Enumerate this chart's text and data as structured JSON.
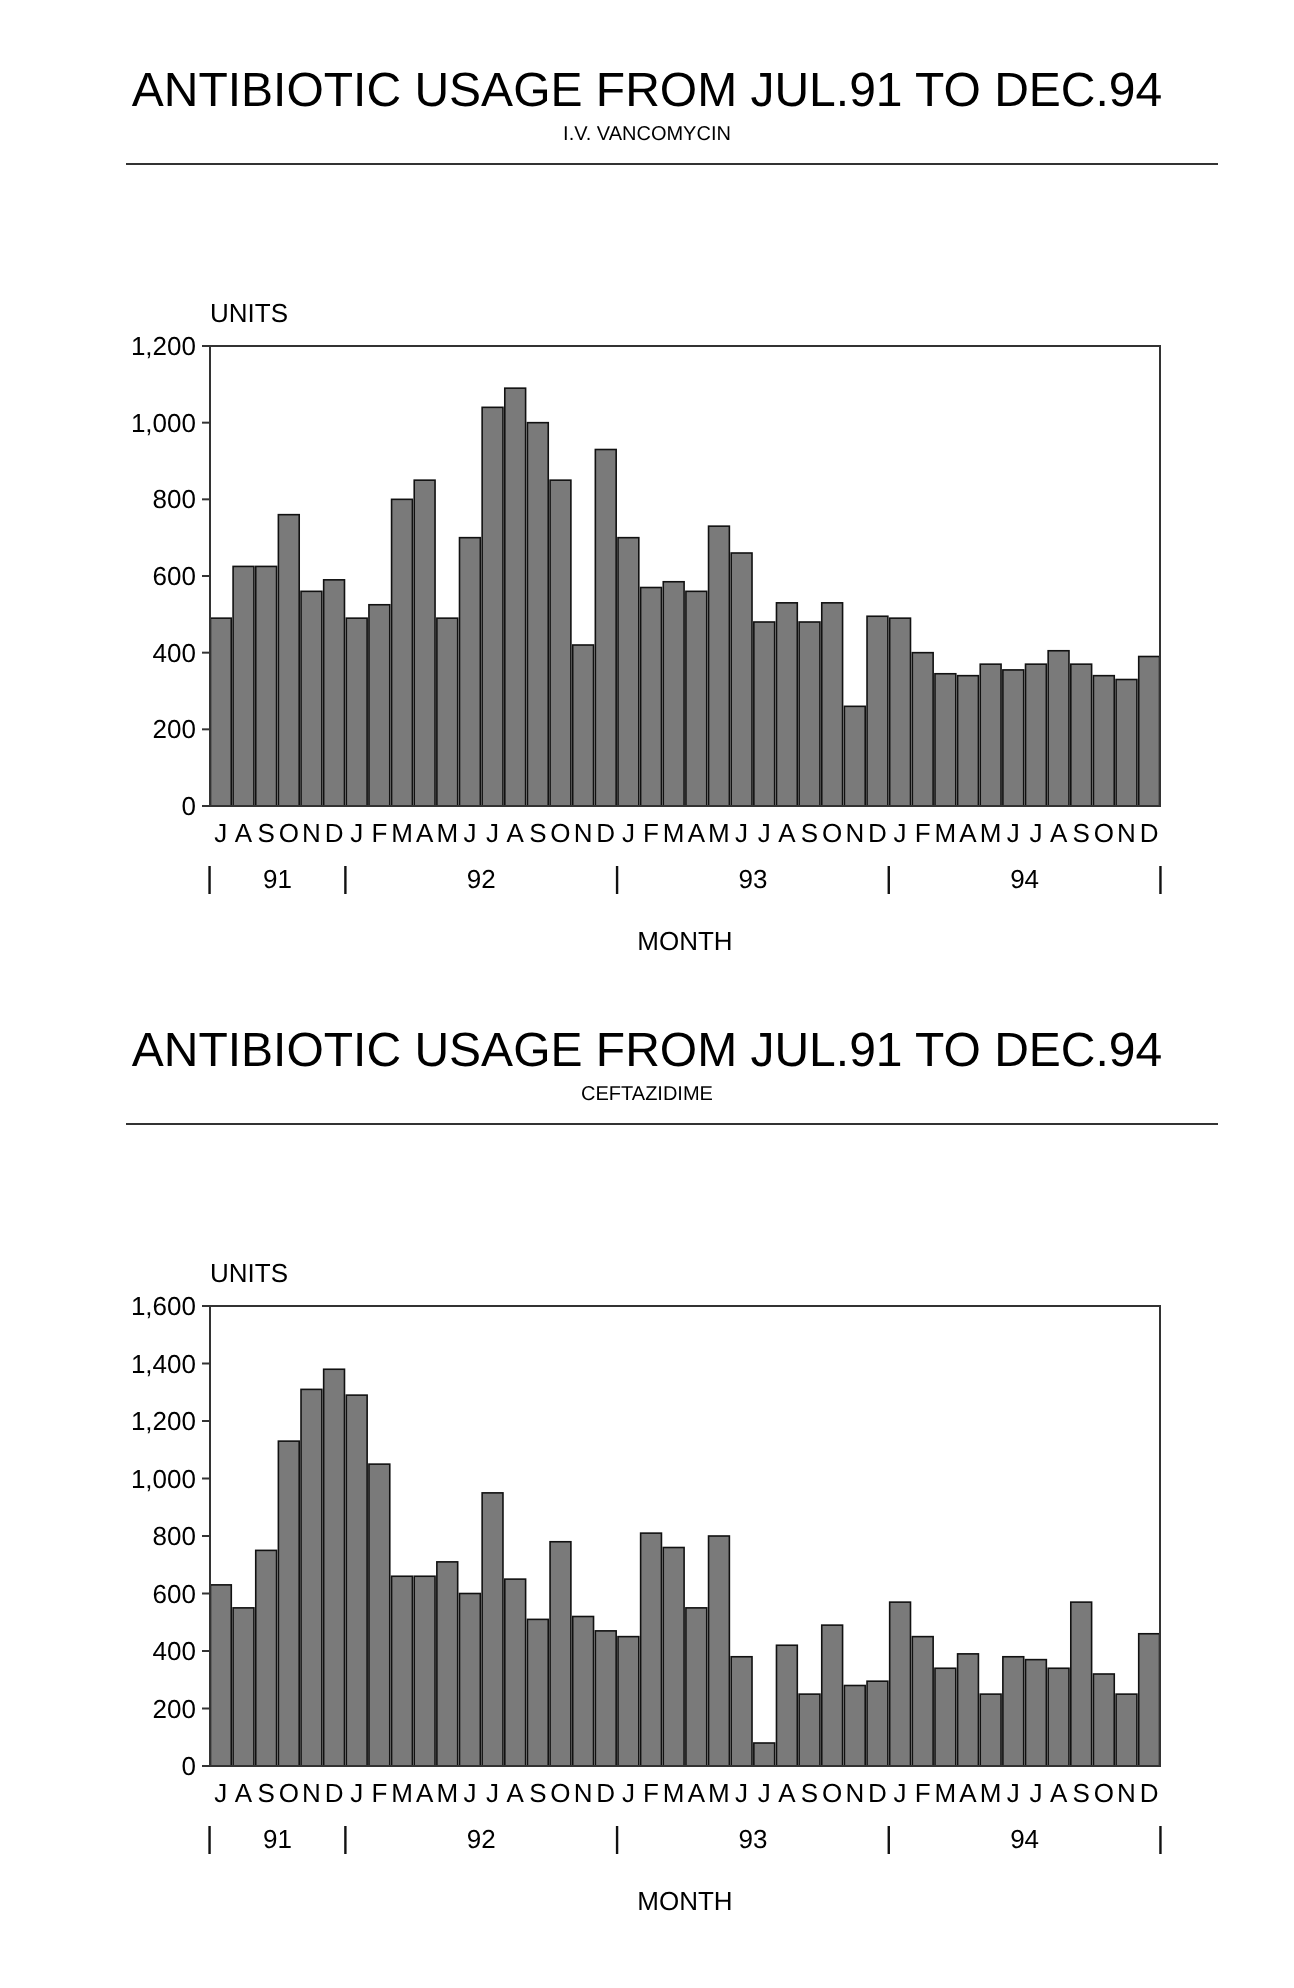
{
  "chart_data": [
    {
      "type": "bar",
      "title": "ANTIBIOTIC USAGE FROM JUL.91 TO DEC.94",
      "subtitle": "I.V. VANCOMYCIN",
      "ylabel": "UNITS",
      "xlabel": "MONTH",
      "annotations": [
        "91",
        "92",
        "93",
        "94"
      ],
      "categories": [
        "J",
        "A",
        "S",
        "O",
        "N",
        "D",
        "J",
        "F",
        "M",
        "A",
        "M",
        "J",
        "J",
        "A",
        "S",
        "O",
        "N",
        "D",
        "J",
        "F",
        "M",
        "A",
        "M",
        "J",
        "J",
        "A",
        "S",
        "O",
        "N",
        "D",
        "J",
        "F",
        "M",
        "A",
        "M",
        "J",
        "J",
        "A",
        "S",
        "O",
        "N",
        "D"
      ],
      "values": [
        490,
        625,
        625,
        760,
        560,
        590,
        490,
        525,
        800,
        850,
        490,
        700,
        1040,
        1090,
        1000,
        850,
        420,
        930,
        700,
        570,
        585,
        560,
        730,
        660,
        480,
        530,
        480,
        530,
        260,
        495,
        490,
        400,
        345,
        340,
        370,
        355,
        370,
        405,
        370,
        340,
        330,
        390
      ],
      "color": "#7a7a7a",
      "ylim": [
        0,
        1200
      ],
      "yticks": [
        0,
        200,
        400,
        600,
        800,
        {
          "value": 1000,
          "label": "1,000"
        },
        {
          "value": 1200,
          "label": "1,200"
        }
      ],
      "grid": false
    },
    {
      "type": "bar",
      "title": "ANTIBIOTIC USAGE FROM JUL.91 TO DEC.94",
      "subtitle": "CEFTAZIDIME",
      "ylabel": "UNITS",
      "xlabel": "MONTH",
      "annotations": [
        "91",
        "92",
        "93",
        "94"
      ],
      "categories": [
        "J",
        "A",
        "S",
        "O",
        "N",
        "D",
        "J",
        "F",
        "M",
        "A",
        "M",
        "J",
        "J",
        "A",
        "S",
        "O",
        "N",
        "D",
        "J",
        "F",
        "M",
        "A",
        "M",
        "J",
        "J",
        "A",
        "S",
        "O",
        "N",
        "D",
        "J",
        "F",
        "M",
        "A",
        "M",
        "J",
        "J",
        "A",
        "S",
        "O",
        "N",
        "D"
      ],
      "values": [
        630,
        550,
        750,
        1130,
        1310,
        1380,
        1290,
        1050,
        660,
        660,
        710,
        600,
        950,
        650,
        510,
        780,
        520,
        470,
        450,
        810,
        760,
        550,
        800,
        380,
        80,
        420,
        250,
        490,
        280,
        295,
        570,
        450,
        340,
        390,
        250,
        380,
        370,
        340,
        570,
        320,
        250,
        460
      ],
      "color": "#7a7a7a",
      "ylim": [
        0,
        1600
      ],
      "yticks": [
        0,
        200,
        400,
        600,
        800,
        {
          "value": 1000,
          "label": "1,000"
        },
        {
          "value": 1200,
          "label": "1,200"
        },
        {
          "value": 1400,
          "label": "1,400"
        },
        {
          "value": 1600,
          "label": "1,600"
        }
      ],
      "grid": false
    }
  ]
}
